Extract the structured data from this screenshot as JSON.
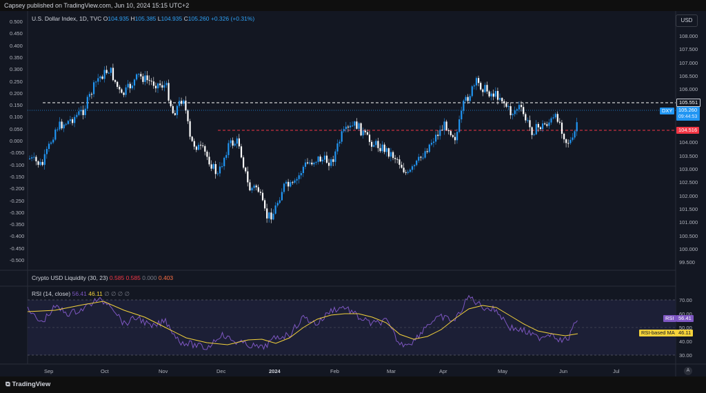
{
  "top_bar": {
    "text": "Capsey published on TradingView.com, Jun 10, 2024 15:15 UTC+2"
  },
  "main_legend": {
    "title": "U.S. Dollar Index, 1D, TVC",
    "open_label": "O",
    "open": "104.935",
    "high_label": "H",
    "high": "105.385",
    "low_label": "L",
    "low": "104.935",
    "close_label": "C",
    "close": "105.260",
    "change": "+0.326 (+0.31%)"
  },
  "currency_button": "USD",
  "left_axis_ticks": [
    "0.500",
    "0.450",
    "0.400",
    "0.350",
    "0.300",
    "0.250",
    "0.200",
    "0.150",
    "0.100",
    "0.050",
    "0.000",
    "-0.050",
    "-0.100",
    "-0.150",
    "-0.200",
    "-0.250",
    "-0.300",
    "-0.350",
    "-0.400",
    "-0.450",
    "-0.500"
  ],
  "right_axis_ticks": [
    "108.000",
    "107.500",
    "107.000",
    "106.500",
    "106.000",
    "105.500",
    "105.000",
    "104.500",
    "104.000",
    "103.500",
    "103.000",
    "102.500",
    "102.000",
    "101.500",
    "101.000",
    "100.500",
    "100.000",
    "99.500"
  ],
  "price_badges": {
    "dxy_symbol": "DXY",
    "dxy_price": "105.260",
    "countdown": "09:44:53",
    "resistance": "105.551",
    "support": "104.516"
  },
  "crypto_legend": {
    "name": "Crypto USD Liquidity (30, 23)",
    "v1": "0.585",
    "v2": "0.585",
    "v3": "0.000",
    "v4": "0.403"
  },
  "rsi_legend": {
    "name": "RSI (14, close)",
    "rsi": "56.41",
    "ma": "46.11",
    "extra": "∅ ∅ ∅ ∅"
  },
  "rsi_axis_ticks": [
    "70.00",
    "60.00",
    "50.00",
    "40.00",
    "30.00"
  ],
  "rsi_badges": {
    "rsi_label": "RSI",
    "rsi_value": "56.41",
    "ma_label": "RSI-based MA",
    "ma_value": "46.11"
  },
  "x_axis": [
    "Sep",
    "Oct",
    "Nov",
    "Dec",
    "2024",
    "Feb",
    "Mar",
    "Apr",
    "May",
    "Jun",
    "Jul"
  ],
  "footer": {
    "logo_text": "TradingView",
    "auto_label": "A"
  },
  "colors": {
    "up": "#2196f3",
    "down": "#ffffff",
    "rsi": "#7e57c2",
    "ma": "#f5d33b",
    "resistance": "#ffffff",
    "support": "#f23645",
    "accent": "#2ea1f5"
  }
}
